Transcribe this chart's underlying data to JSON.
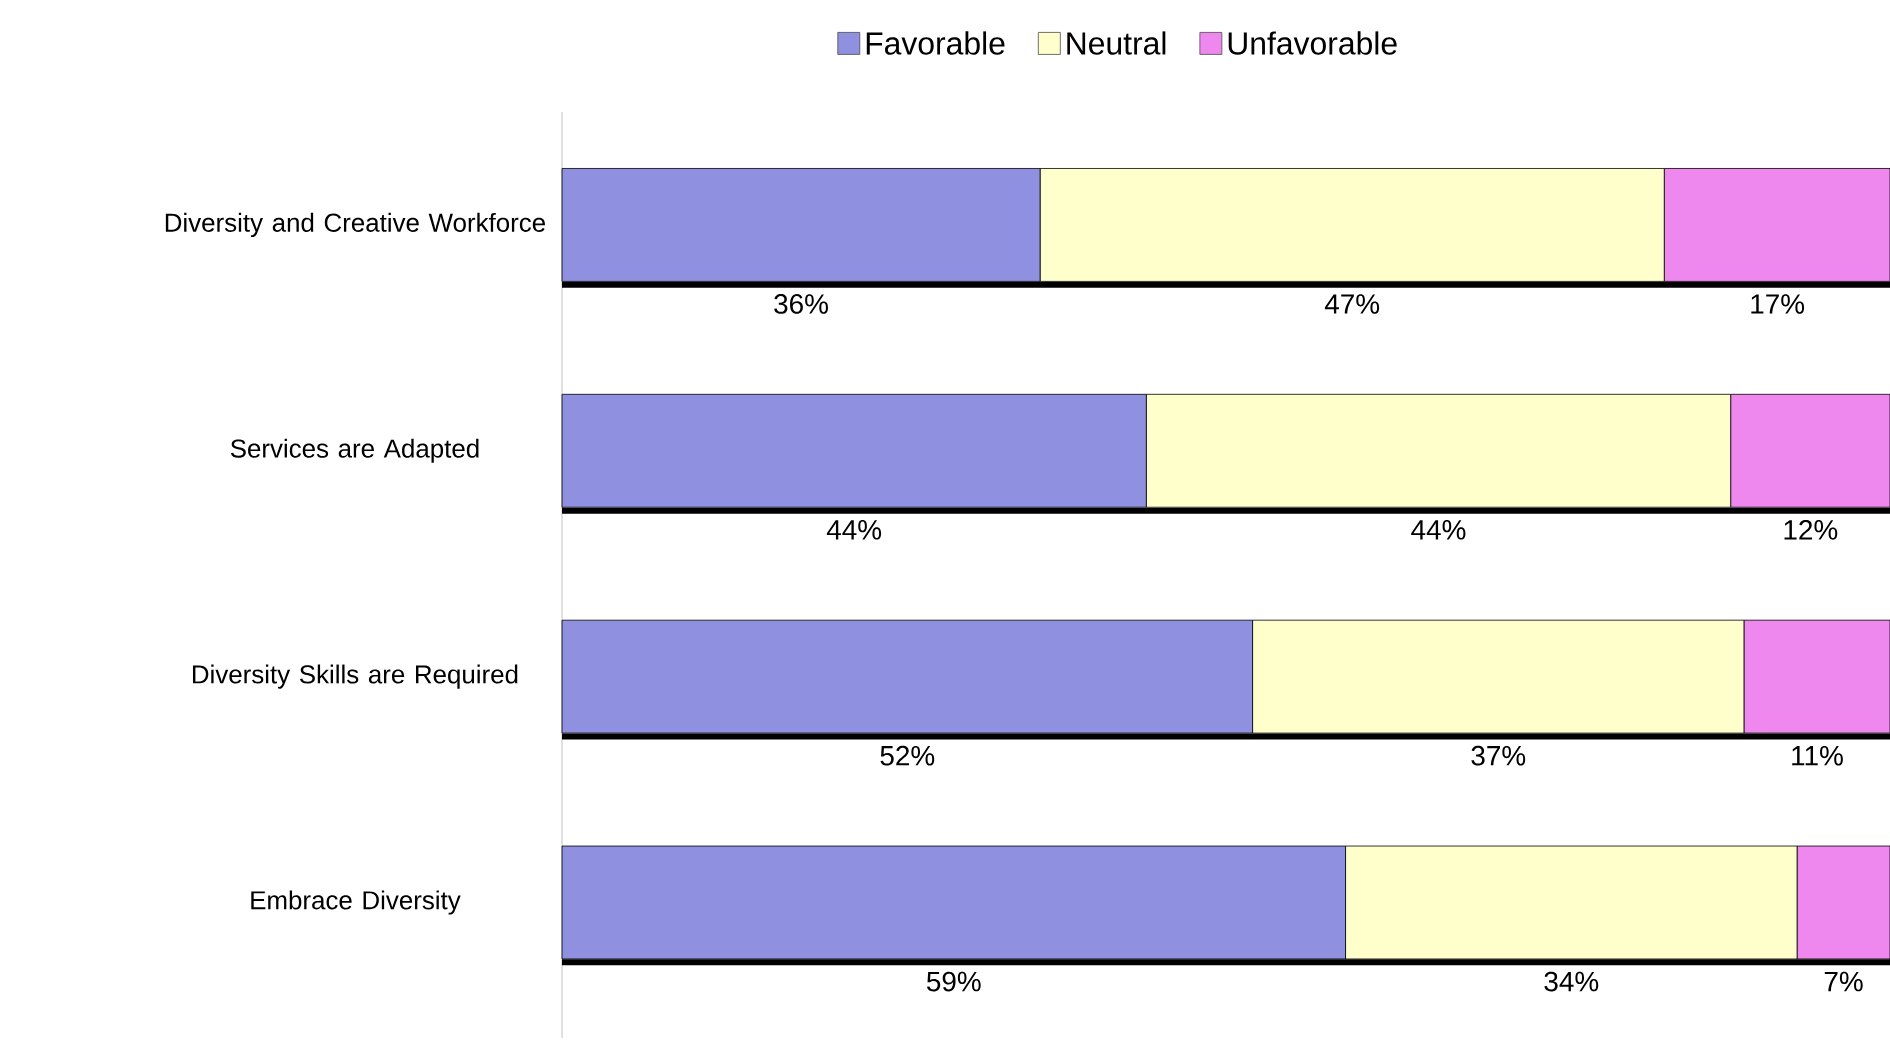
{
  "chart_data": {
    "type": "bar",
    "orientation": "horizontal",
    "stacked": true,
    "tick_labels": "y",
    "legend": "top",
    "xlim": [
      0,
      100
    ],
    "categories": [
      "Diversity and Creative Workforce",
      "Services are Adapted",
      "Diversity Skills are Required",
      "Embrace Diversity"
    ],
    "series": [
      {
        "name": "Favorable",
        "color": "#9090e0",
        "values": [
          36,
          44,
          52,
          59
        ],
        "value_labels": [
          "36%",
          "44%",
          "52%",
          "59%"
        ]
      },
      {
        "name": "Neutral",
        "color": "#ffffcc",
        "values": [
          47,
          44,
          37,
          34
        ],
        "value_labels": [
          "47%",
          "44%",
          "37%",
          "34%"
        ]
      },
      {
        "name": "Unfavorable",
        "color": "#ee88ee",
        "values": [
          17,
          12,
          11,
          7
        ],
        "value_labels": [
          "17%",
          "12%",
          "11%",
          "7%"
        ]
      }
    ]
  }
}
